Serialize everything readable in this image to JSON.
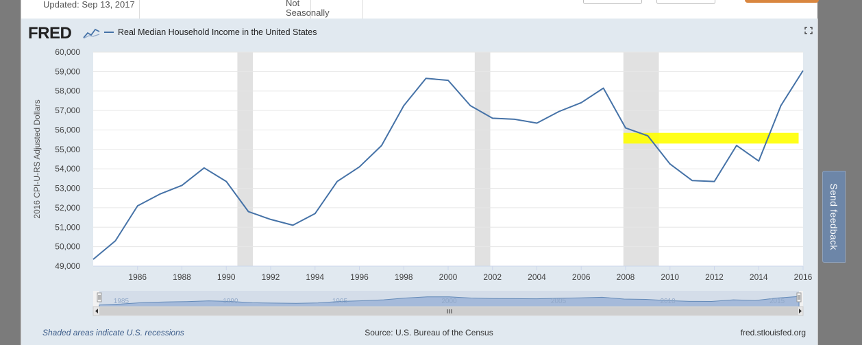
{
  "header": {
    "updated": "Updated: Sep 13, 2017",
    "seasonal": "Not Seasonally Adjusted"
  },
  "brand": {
    "logo": "FRED"
  },
  "feedback": {
    "label": "Send feedback"
  },
  "footer": {
    "note": "Shaded areas indicate U.S. recessions",
    "source": "Source: U.S. Bureau of the Census",
    "site": "fred.stlouisfed.org"
  },
  "colors": {
    "series": "#4572a7",
    "recession": "#e1e1e1",
    "highlight": "#ffff00",
    "panel": "#e1e9f0",
    "navigator": "#9fb7d9"
  },
  "chart_data": {
    "type": "line",
    "title": "Real Median Household Income in the United States",
    "xlabel": "",
    "ylabel": "2016 CPI-U-RS Adjusted Dollars",
    "legend_position": "top-left",
    "grid": true,
    "xlim": [
      1984,
      2016
    ],
    "ylim": [
      49000,
      60000
    ],
    "x_ticks": [
      1986,
      1988,
      1990,
      1992,
      1994,
      1996,
      1998,
      2000,
      2002,
      2004,
      2006,
      2008,
      2010,
      2012,
      2014,
      2016
    ],
    "y_ticks": [
      49000,
      50000,
      51000,
      52000,
      53000,
      54000,
      55000,
      56000,
      57000,
      58000,
      59000,
      60000
    ],
    "y_tick_labels": [
      "49,000",
      "50,000",
      "51,000",
      "52,000",
      "53,000",
      "54,000",
      "55,000",
      "56,000",
      "57,000",
      "58,000",
      "59,000",
      "60,000"
    ],
    "series": [
      {
        "name": "Real Median Household Income in the United States",
        "x": [
          1984,
          1985,
          1986,
          1987,
          1988,
          1989,
          1990,
          1991,
          1992,
          1993,
          1994,
          1995,
          1996,
          1997,
          1998,
          1999,
          2000,
          2001,
          2002,
          2003,
          2004,
          2005,
          2006,
          2007,
          2008,
          2009,
          2010,
          2011,
          2012,
          2013,
          2014,
          2015,
          2016
        ],
        "values": [
          49350,
          50300,
          52100,
          52700,
          53150,
          54050,
          53350,
          51800,
          51400,
          51100,
          51700,
          53350,
          54100,
          55200,
          57250,
          58650,
          58550,
          57250,
          56600,
          56550,
          56350,
          56950,
          57400,
          58150,
          56100,
          55700,
          54250,
          53400,
          53350,
          55200,
          54400,
          57250,
          59050
        ]
      }
    ],
    "recessions": [
      {
        "start": 1990.5,
        "end": 1991.2
      },
      {
        "start": 2001.2,
        "end": 2001.9
      },
      {
        "start": 2007.9,
        "end": 2009.5
      }
    ],
    "annotations": [
      {
        "type": "highlight",
        "x_start": 2007.9,
        "x_end": 2015.8,
        "y_start": 55300,
        "y_end": 55850
      }
    ],
    "navigator": {
      "tick_labels": [
        "1985",
        "1990",
        "1995",
        "2000",
        "2005",
        "2010",
        "2015"
      ]
    }
  }
}
